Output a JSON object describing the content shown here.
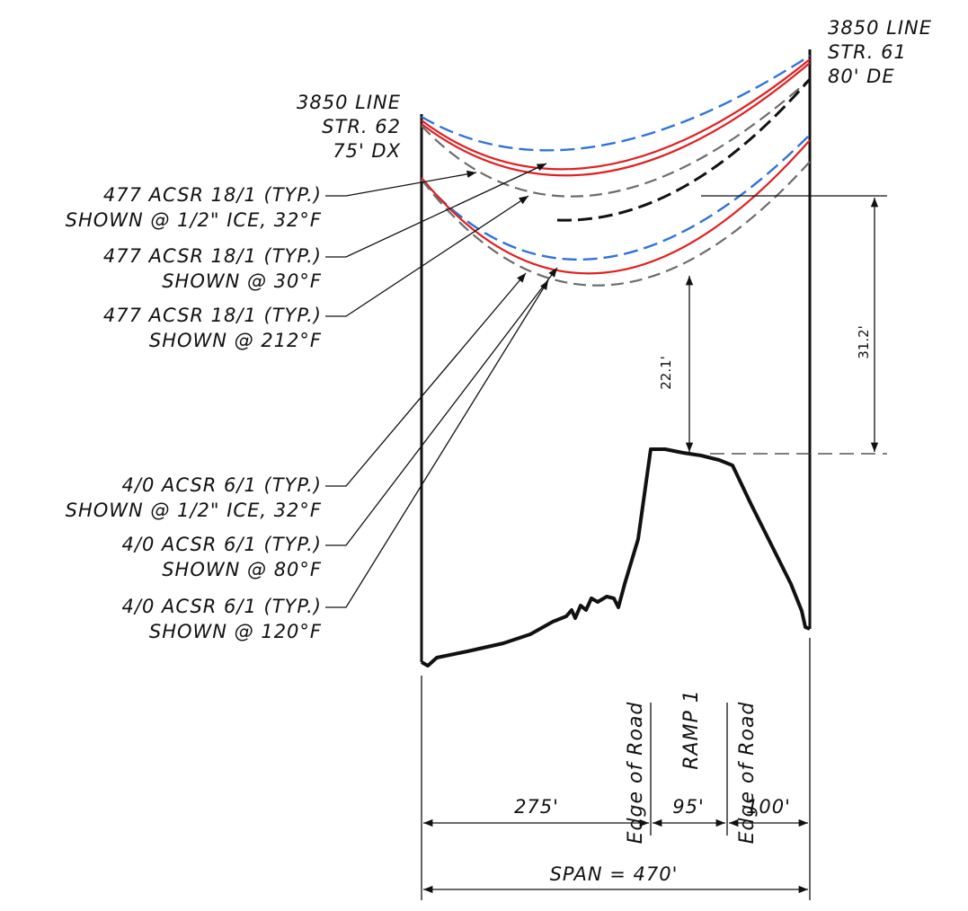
{
  "structures": {
    "left": {
      "line1": "3850 LINE",
      "line2": "STR. 62",
      "line3": "75' DX"
    },
    "right": {
      "line1": "3850 LINE",
      "line2": "STR. 61",
      "line3": "80' DE"
    }
  },
  "labels": {
    "c477_ice": {
      "line1": "477 ACSR 18/1 (TYP.)",
      "line2": "SHOWN @ 1/2\" ICE, 32°F"
    },
    "c477_30": {
      "line1": "477 ACSR 18/1 (TYP.)",
      "line2": "SHOWN @ 30°F"
    },
    "c477_212": {
      "line1": "477 ACSR 18/1 (TYP.)",
      "line2": "SHOWN @ 212°F"
    },
    "c40_ice": {
      "line1": "4/0 ACSR 6/1 (TYP.)",
      "line2": "SHOWN @ 1/2\" ICE, 32°F"
    },
    "c40_80": {
      "line1": "4/0 ACSR 6/1 (TYP.)",
      "line2": "SHOWN @ 80°F"
    },
    "c40_120": {
      "line1": "4/0 ACSR 6/1 (TYP.)",
      "line2": "SHOWN @ 120°F"
    }
  },
  "road": {
    "edge_left": "Edge of Road",
    "ramp": "RAMP 1",
    "edge_right": "Edge of Road"
  },
  "dimensions": {
    "clearance": "22.1'",
    "height": "31.2'",
    "seg1": "275'",
    "seg2": "95'",
    "seg3": "100'",
    "span": "SPAN = 470'"
  },
  "colors": {
    "hot_curve": "#e02020",
    "cold_curve": "#2f73d9",
    "ice_curve": "#6c6c6c",
    "line": "#111111"
  }
}
